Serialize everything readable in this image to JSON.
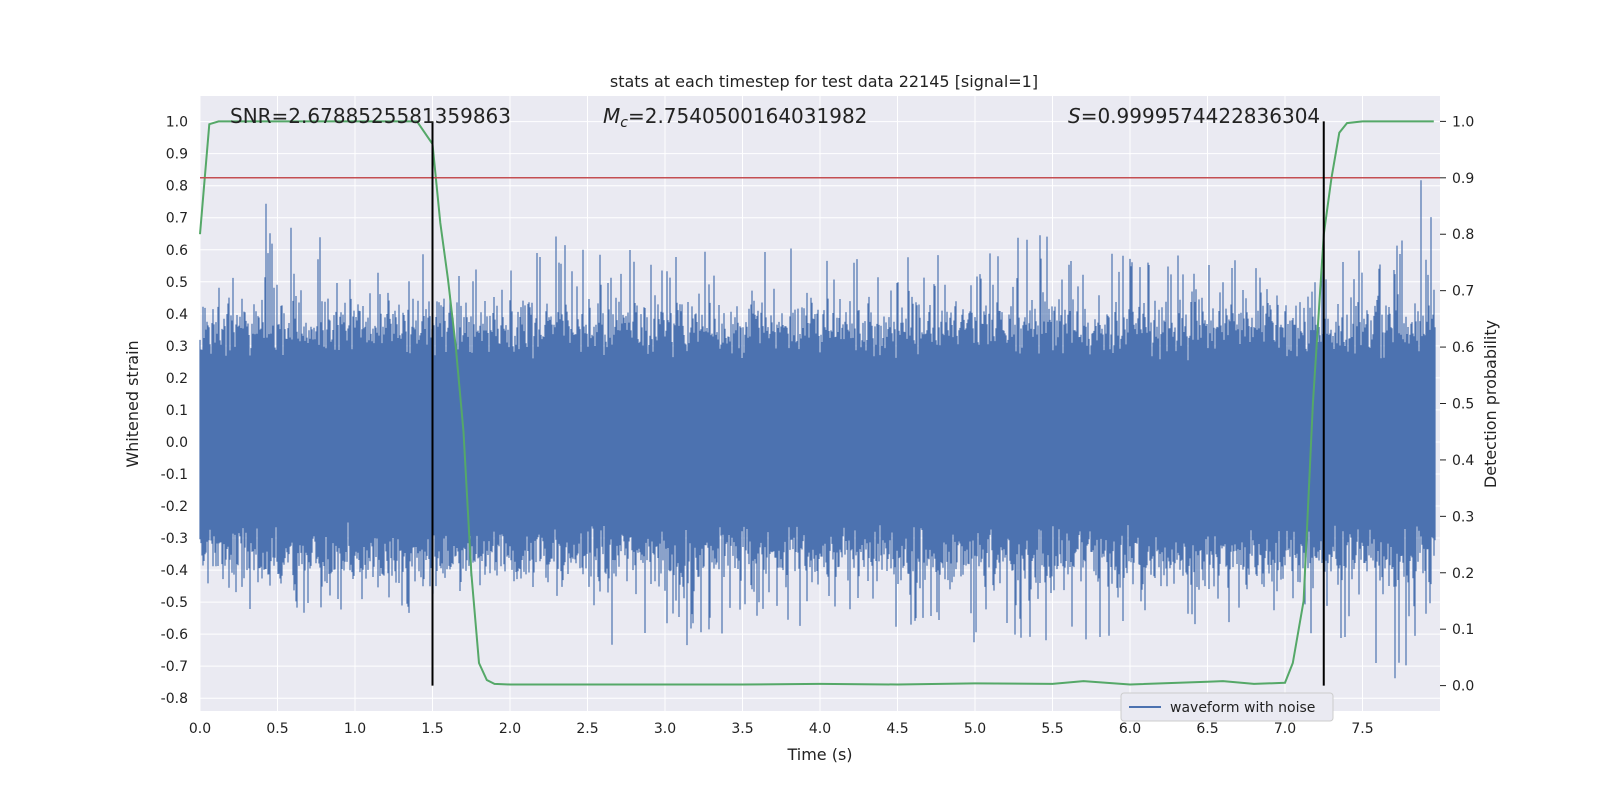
{
  "chart_data": {
    "type": "line",
    "title": "stats at each timestep for test data 22145 [signal=1]",
    "xlabel": "Time (s)",
    "ylabel": "Whitened strain",
    "y2label": "Detection probability",
    "xlim": [
      0.0,
      8.0
    ],
    "ylim": [
      -0.84,
      1.08
    ],
    "y2lim": [
      -0.045,
      1.045
    ],
    "xticks": [
      "0.0",
      "0.5",
      "1.0",
      "1.5",
      "2.0",
      "2.5",
      "3.0",
      "3.5",
      "4.0",
      "4.5",
      "5.0",
      "5.5",
      "6.0",
      "6.5",
      "7.0",
      "7.5"
    ],
    "yticks": [
      "1.0",
      "0.9",
      "0.8",
      "0.7",
      "0.6",
      "0.5",
      "0.4",
      "0.3",
      "0.2",
      "0.1",
      "0.0",
      "-0.1",
      "-0.2",
      "-0.3",
      "-0.4",
      "-0.5",
      "-0.6",
      "-0.7",
      "-0.8"
    ],
    "y2ticks": [
      "1.0",
      "0.9",
      "0.8",
      "0.7",
      "0.6",
      "0.5",
      "0.4",
      "0.3",
      "0.2",
      "0.1",
      "0.0"
    ],
    "grid": true,
    "legend_placement": "lower-right",
    "annotations": {
      "snr": "SNR=2.6788525581359863",
      "mc_symbol": "M",
      "mc_sub": "c",
      "mc_value": "=2.7540500164031982",
      "s_symbol": "S",
      "s_value": "=0.9999574422836304"
    },
    "threshold": {
      "value": 0.9,
      "axis": "right",
      "color": "#c44e52"
    },
    "vertical_markers": [
      1.5,
      7.25
    ],
    "series": [
      {
        "name": "waveform with noise",
        "axis": "left",
        "color": "#4c72b0",
        "envelope_points": [
          {
            "x": 0.0,
            "max": 0.45,
            "min": -0.48
          },
          {
            "x": 0.5,
            "max": 0.81,
            "min": -0.63
          },
          {
            "x": 1.0,
            "max": 0.5,
            "min": -0.52
          },
          {
            "x": 1.5,
            "max": 0.6,
            "min": -0.54
          },
          {
            "x": 2.0,
            "max": 0.55,
            "min": -0.52
          },
          {
            "x": 2.35,
            "max": 0.66,
            "min": -0.55
          },
          {
            "x": 2.7,
            "max": 0.6,
            "min": -0.69
          },
          {
            "x": 3.75,
            "max": 0.61,
            "min": -0.58
          },
          {
            "x": 4.5,
            "max": 0.58,
            "min": -0.62
          },
          {
            "x": 5.4,
            "max": 0.65,
            "min": -0.64
          },
          {
            "x": 6.0,
            "max": 0.6,
            "min": -0.61
          },
          {
            "x": 6.5,
            "max": 0.58,
            "min": -0.58
          },
          {
            "x": 7.0,
            "max": 0.55,
            "min": -0.57
          },
          {
            "x": 7.7,
            "max": 0.62,
            "min": -0.75
          },
          {
            "x": 7.9,
            "max": 1.0,
            "min": -0.65
          },
          {
            "x": 8.0,
            "max": 0.37,
            "min": -0.35
          }
        ]
      },
      {
        "name": "detection probability",
        "axis": "right",
        "color": "#55a868",
        "x": [
          0.0,
          0.06,
          0.12,
          0.5,
          1.0,
          1.4,
          1.5,
          1.55,
          1.6,
          1.65,
          1.7,
          1.75,
          1.8,
          1.85,
          1.9,
          2.0,
          2.5,
          3.0,
          3.5,
          4.0,
          4.5,
          5.0,
          5.5,
          5.7,
          6.0,
          6.5,
          6.6,
          6.8,
          7.0,
          7.05,
          7.12,
          7.18,
          7.25,
          7.3,
          7.35,
          7.4,
          7.5,
          7.96
        ],
        "y": [
          0.8,
          0.995,
          1.0,
          1.0,
          1.0,
          1.0,
          0.96,
          0.82,
          0.72,
          0.6,
          0.45,
          0.2,
          0.04,
          0.01,
          0.003,
          0.002,
          0.002,
          0.002,
          0.002,
          0.003,
          0.002,
          0.004,
          0.003,
          0.008,
          0.002,
          0.007,
          0.008,
          0.003,
          0.005,
          0.04,
          0.15,
          0.5,
          0.8,
          0.9,
          0.98,
          0.997,
          1.0,
          1.0
        ]
      }
    ]
  }
}
